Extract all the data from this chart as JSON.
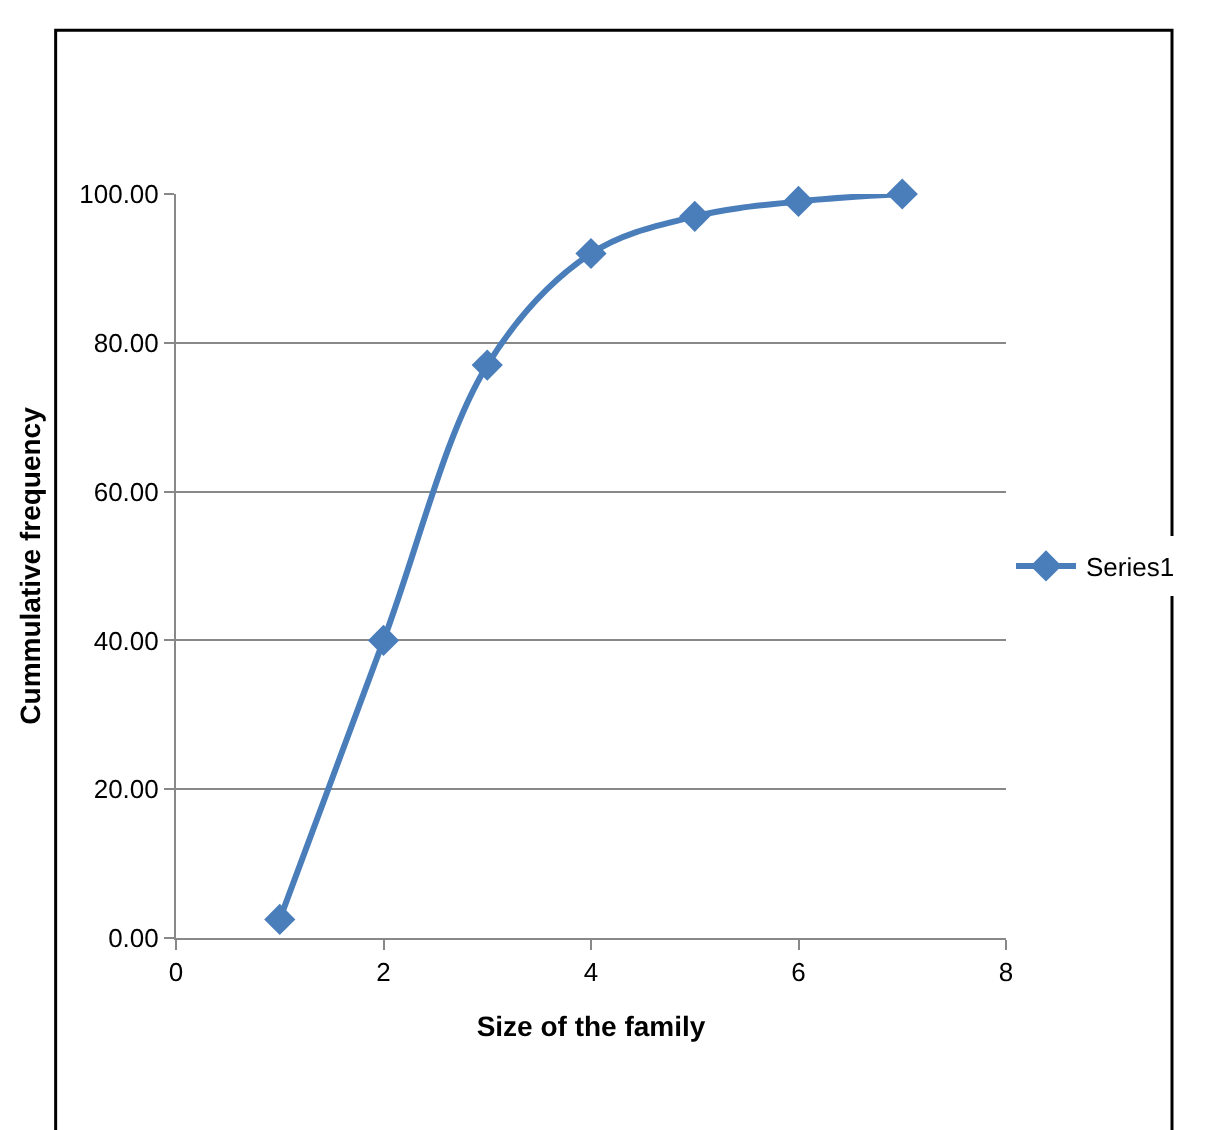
{
  "chart_data": {
    "type": "line",
    "xlabel": "Size of the family",
    "ylabel": "Cummulative frequency",
    "x": [
      1,
      2,
      3,
      4,
      5,
      6,
      7
    ],
    "series": [
      {
        "name": "Series1",
        "color": "#4a7ebb",
        "values": [
          2.5,
          40,
          77,
          92,
          97,
          99,
          100
        ]
      }
    ],
    "xlim": [
      0,
      8
    ],
    "xticks": [
      0,
      2,
      4,
      6,
      8
    ],
    "ylim": [
      0,
      100
    ],
    "yticks": [
      {
        "value": 0,
        "label": "0.00"
      },
      {
        "value": 20,
        "label": "20.00"
      },
      {
        "value": 40,
        "label": "40.00"
      },
      {
        "value": 60,
        "label": "60.00"
      },
      {
        "value": 80,
        "label": "80.00"
      },
      {
        "value": 100,
        "label": "100.00"
      }
    ],
    "grid": "y",
    "legend": "right",
    "marker": "diamond",
    "line_style": "solid"
  }
}
